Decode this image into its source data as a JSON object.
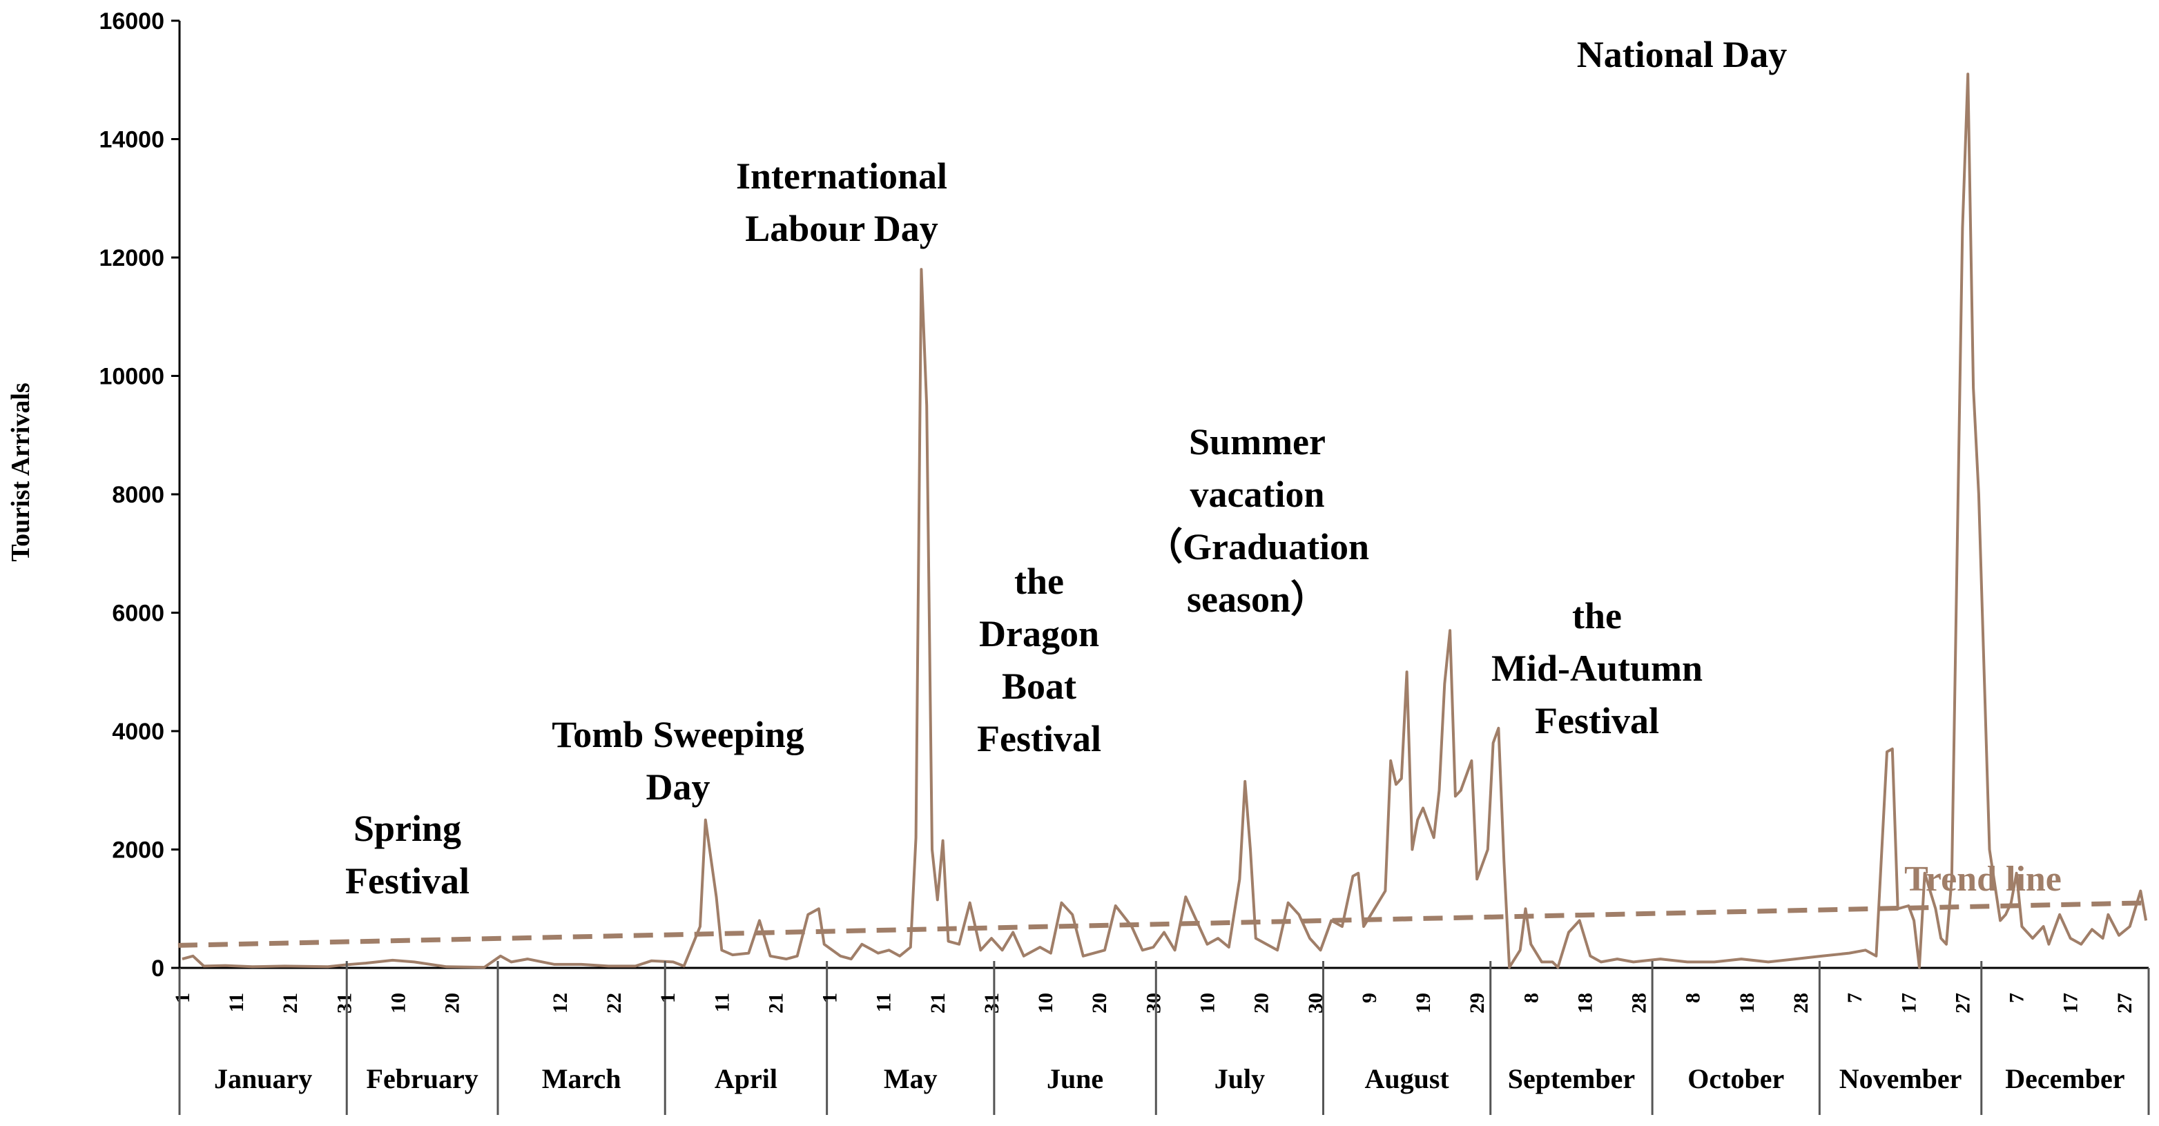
{
  "chart_data": {
    "type": "line",
    "xlabel": "",
    "ylabel": "Tourist Arrivals",
    "ylim": [
      0,
      16000
    ],
    "yticks": [
      0,
      2000,
      4000,
      6000,
      8000,
      10000,
      12000,
      14000,
      16000
    ],
    "grid": false,
    "legend": "none",
    "colors": {
      "series": "#a07e68",
      "trend": "#a07e68",
      "axis": "#000000"
    },
    "months": [
      {
        "name": "January",
        "days": 31,
        "ticks": [
          1,
          11,
          21,
          31
        ]
      },
      {
        "name": "February",
        "days": 28,
        "ticks": [
          10,
          20
        ]
      },
      {
        "name": "March",
        "days": 31,
        "ticks": [
          12,
          22
        ]
      },
      {
        "name": "April",
        "days": 30,
        "ticks": [
          1,
          11,
          21
        ]
      },
      {
        "name": "May",
        "days": 31,
        "ticks": [
          1,
          11,
          21,
          31
        ]
      },
      {
        "name": "June",
        "days": 30,
        "ticks": [
          10,
          20,
          30
        ]
      },
      {
        "name": "July",
        "days": 31,
        "ticks": [
          10,
          20,
          30
        ]
      },
      {
        "name": "August",
        "days": 31,
        "ticks": [
          9,
          19,
          29
        ]
      },
      {
        "name": "September",
        "days": 30,
        "ticks": [
          8,
          18,
          28
        ]
      },
      {
        "name": "October",
        "days": 31,
        "ticks": [
          8,
          18,
          28
        ]
      },
      {
        "name": "November",
        "days": 30,
        "ticks": [
          7,
          17,
          27
        ]
      },
      {
        "name": "December",
        "days": 31,
        "ticks": [
          7,
          17,
          27
        ]
      }
    ],
    "series": [
      {
        "values": [
          [
            1,
            150
          ],
          [
            3,
            200
          ],
          [
            5,
            30
          ],
          [
            9,
            40
          ],
          [
            14,
            20
          ],
          [
            20,
            30
          ],
          [
            28,
            20
          ],
          [
            31,
            50
          ],
          [
            35,
            80
          ],
          [
            40,
            130
          ],
          [
            44,
            100
          ],
          [
            50,
            20
          ],
          [
            57,
            10
          ],
          [
            60,
            200
          ],
          [
            62,
            100
          ],
          [
            65,
            150
          ],
          [
            70,
            60
          ],
          [
            75,
            60
          ],
          [
            80,
            30
          ],
          [
            85,
            30
          ],
          [
            88,
            120
          ],
          [
            92,
            100
          ],
          [
            94,
            30
          ],
          [
            97,
            700
          ],
          [
            98,
            2500
          ],
          [
            100,
            1200
          ],
          [
            101,
            300
          ],
          [
            103,
            220
          ],
          [
            106,
            250
          ],
          [
            108,
            800
          ],
          [
            110,
            200
          ],
          [
            113,
            150
          ],
          [
            115,
            200
          ],
          [
            117,
            900
          ],
          [
            119,
            1000
          ],
          [
            120,
            400
          ],
          [
            123,
            200
          ],
          [
            125,
            150
          ],
          [
            127,
            400
          ],
          [
            129,
            300
          ],
          [
            130,
            250
          ],
          [
            132,
            300
          ],
          [
            134,
            200
          ],
          [
            136,
            350
          ],
          [
            137,
            2200
          ],
          [
            138,
            11800
          ],
          [
            139,
            9500
          ],
          [
            140,
            2000
          ],
          [
            141,
            1150
          ],
          [
            142,
            2150
          ],
          [
            143,
            450
          ],
          [
            145,
            400
          ],
          [
            147,
            1100
          ],
          [
            149,
            300
          ],
          [
            151,
            500
          ],
          [
            153,
            300
          ],
          [
            155,
            600
          ],
          [
            157,
            200
          ],
          [
            160,
            350
          ],
          [
            162,
            250
          ],
          [
            164,
            1100
          ],
          [
            166,
            900
          ],
          [
            168,
            200
          ],
          [
            170,
            250
          ],
          [
            172,
            300
          ],
          [
            174,
            1050
          ],
          [
            177,
            700
          ],
          [
            179,
            300
          ],
          [
            181,
            350
          ],
          [
            183,
            600
          ],
          [
            185,
            300
          ],
          [
            187,
            1200
          ],
          [
            189,
            800
          ],
          [
            191,
            400
          ],
          [
            193,
            500
          ],
          [
            195,
            350
          ],
          [
            197,
            1500
          ],
          [
            198,
            3150
          ],
          [
            199,
            2000
          ],
          [
            200,
            500
          ],
          [
            202,
            400
          ],
          [
            204,
            300
          ],
          [
            206,
            1100
          ],
          [
            208,
            900
          ],
          [
            210,
            500
          ],
          [
            212,
            300
          ],
          [
            214,
            800
          ],
          [
            216,
            700
          ],
          [
            218,
            1550
          ],
          [
            219,
            1600
          ],
          [
            220,
            700
          ],
          [
            222,
            1000
          ],
          [
            224,
            1300
          ],
          [
            225,
            3500
          ],
          [
            226,
            3100
          ],
          [
            227,
            3200
          ],
          [
            228,
            5000
          ],
          [
            229,
            2000
          ],
          [
            230,
            2500
          ],
          [
            231,
            2700
          ],
          [
            233,
            2200
          ],
          [
            234,
            3000
          ],
          [
            235,
            4800
          ],
          [
            236,
            5700
          ],
          [
            237,
            2900
          ],
          [
            238,
            3000
          ],
          [
            240,
            3500
          ],
          [
            241,
            1500
          ],
          [
            243,
            2000
          ],
          [
            244,
            3800
          ],
          [
            245,
            4050
          ],
          [
            246,
            1800
          ],
          [
            247,
            10
          ],
          [
            249,
            300
          ],
          [
            250,
            1000
          ],
          [
            251,
            400
          ],
          [
            253,
            100
          ],
          [
            255,
            100
          ],
          [
            256,
            10
          ],
          [
            258,
            600
          ],
          [
            260,
            800
          ],
          [
            262,
            200
          ],
          [
            264,
            100
          ],
          [
            267,
            150
          ],
          [
            270,
            100
          ],
          [
            275,
            150
          ],
          [
            280,
            100
          ],
          [
            285,
            100
          ],
          [
            290,
            150
          ],
          [
            295,
            100
          ],
          [
            300,
            150
          ],
          [
            305,
            200
          ],
          [
            310,
            250
          ],
          [
            313,
            300
          ],
          [
            315,
            200
          ],
          [
            317,
            3650
          ],
          [
            318,
            3700
          ],
          [
            319,
            1000
          ],
          [
            321,
            1050
          ],
          [
            322,
            800
          ],
          [
            323,
            10
          ],
          [
            324,
            1600
          ],
          [
            326,
            1000
          ],
          [
            327,
            500
          ],
          [
            328,
            400
          ],
          [
            329,
            1500
          ],
          [
            330,
            7000
          ],
          [
            331,
            12500
          ],
          [
            332,
            15100
          ],
          [
            333,
            9800
          ],
          [
            334,
            8000
          ],
          [
            335,
            5000
          ],
          [
            336,
            2000
          ],
          [
            338,
            800
          ],
          [
            339,
            900
          ],
          [
            340,
            1100
          ],
          [
            341,
            1600
          ],
          [
            342,
            700
          ],
          [
            344,
            500
          ],
          [
            346,
            700
          ],
          [
            347,
            400
          ],
          [
            349,
            900
          ],
          [
            351,
            500
          ],
          [
            353,
            400
          ],
          [
            355,
            650
          ],
          [
            357,
            500
          ],
          [
            358,
            900
          ],
          [
            360,
            550
          ],
          [
            362,
            700
          ],
          [
            364,
            1300
          ],
          [
            365,
            800
          ]
        ]
      },
      {
        "name": "Trend line",
        "values": [
          [
            1,
            380
          ],
          [
            365,
            1100
          ]
        ]
      }
    ],
    "annotations": [
      {
        "lines": [
          "Spring",
          "Festival"
        ]
      },
      {
        "lines": [
          "Tomb Sweeping",
          "Day"
        ]
      },
      {
        "lines": [
          "International",
          "Labour Day"
        ]
      },
      {
        "lines": [
          "the",
          "Dragon",
          "Boat",
          "Festival"
        ]
      },
      {
        "lines": [
          "Summer",
          "vacation",
          "（Graduation",
          "season）"
        ]
      },
      {
        "lines": [
          "the",
          "Mid-Autumn",
          "Festival"
        ]
      },
      {
        "lines": [
          "National Day"
        ]
      }
    ]
  }
}
